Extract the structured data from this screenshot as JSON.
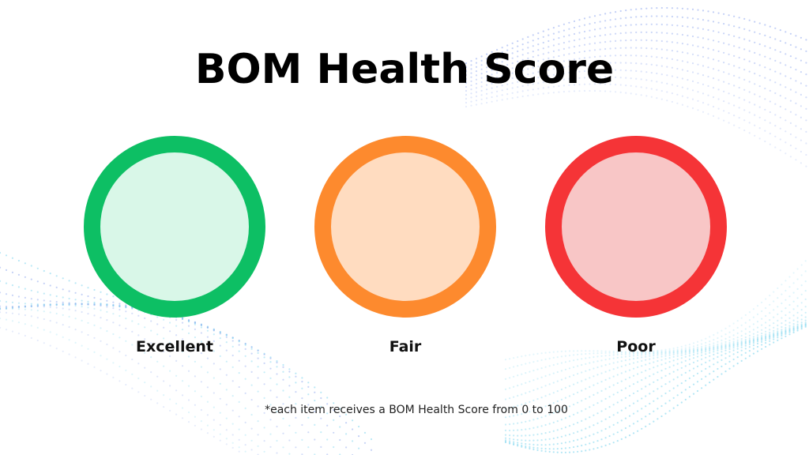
{
  "title": "BOM Health Score",
  "scores": [
    {
      "label": "Excellent",
      "ring_color": "#0dbf64",
      "fill_color": "#d9f7e8"
    },
    {
      "label": "Fair",
      "ring_color": "#fd8a2e",
      "fill_color": "#ffdcc0"
    },
    {
      "label": "Poor",
      "ring_color": "#f53437",
      "fill_color": "#f8c6c6"
    }
  ],
  "footnote": "*each item receives a BOM Health Score from 0 to 100",
  "colors": {
    "background": "#ffffff",
    "dot_pattern_blue": "#8fa8ee",
    "dot_pattern_cyan": "#7fd6ef"
  }
}
